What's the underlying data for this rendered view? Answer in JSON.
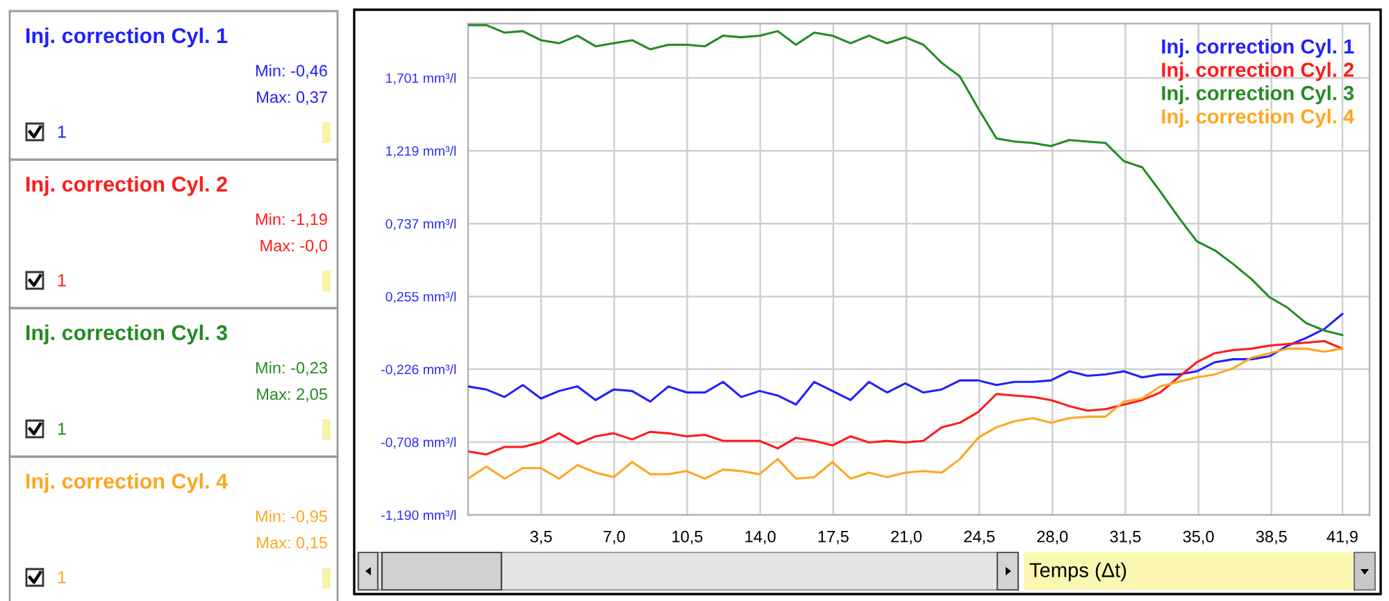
{
  "chart_data": {
    "type": "line",
    "x": [
      0,
      0.87,
      1.75,
      2.62,
      3.49,
      4.36,
      5.24,
      6.11,
      6.98,
      7.86,
      8.73,
      9.6,
      10.48,
      11.35,
      12.22,
      13.09,
      13.97,
      14.84,
      15.71,
      16.59,
      17.46,
      18.33,
      19.21,
      20.08,
      20.95,
      21.82,
      22.7,
      23.57,
      24.44,
      25.32,
      26.19,
      27.06,
      27.93,
      28.81,
      29.68,
      30.55,
      31.43,
      32.3,
      33.17,
      34.04,
      34.92,
      35.79,
      36.66,
      37.54,
      38.41,
      39.28,
      40.15,
      41.03,
      41.9
    ],
    "series": [
      {
        "name": "Inj. correction Cyl. 1",
        "color": "#2020ff",
        "values": [
          -0.34,
          -0.36,
          -0.41,
          -0.33,
          -0.42,
          -0.37,
          -0.34,
          -0.43,
          -0.36,
          -0.37,
          -0.44,
          -0.34,
          -0.38,
          -0.38,
          -0.31,
          -0.41,
          -0.37,
          -0.4,
          -0.46,
          -0.31,
          -0.37,
          -0.43,
          -0.31,
          -0.38,
          -0.32,
          -0.38,
          -0.36,
          -0.3,
          -0.3,
          -0.33,
          -0.31,
          -0.31,
          -0.3,
          -0.24,
          -0.27,
          -0.26,
          -0.24,
          -0.28,
          -0.26,
          -0.26,
          -0.24,
          -0.18,
          -0.16,
          -0.16,
          -0.14,
          -0.07,
          -0.02,
          0.04,
          0.14
        ]
      },
      {
        "name": "Inj. correction Cyl. 2",
        "color": "#ff1a1a",
        "values": [
          -0.77,
          -0.79,
          -0.74,
          -0.74,
          -0.71,
          -0.65,
          -0.72,
          -0.67,
          -0.65,
          -0.69,
          -0.64,
          -0.65,
          -0.67,
          -0.66,
          -0.7,
          -0.7,
          -0.7,
          -0.75,
          -0.68,
          -0.7,
          -0.73,
          -0.67,
          -0.71,
          -0.7,
          -0.71,
          -0.7,
          -0.61,
          -0.58,
          -0.51,
          -0.39,
          -0.4,
          -0.41,
          -0.43,
          -0.47,
          -0.5,
          -0.49,
          -0.46,
          -0.43,
          -0.38,
          -0.28,
          -0.18,
          -0.12,
          -0.1,
          -0.09,
          -0.07,
          -0.06,
          -0.05,
          -0.04,
          -0.09
        ]
      },
      {
        "name": "Inj. correction Cyl. 3",
        "color": "#228b22",
        "values": [
          2.05,
          2.05,
          2.0,
          2.01,
          1.95,
          1.93,
          1.98,
          1.91,
          1.93,
          1.95,
          1.89,
          1.92,
          1.92,
          1.91,
          1.98,
          1.97,
          1.98,
          2.01,
          1.92,
          2.0,
          1.98,
          1.93,
          1.98,
          1.93,
          1.97,
          1.92,
          1.8,
          1.71,
          1.5,
          1.3,
          1.28,
          1.27,
          1.25,
          1.29,
          1.28,
          1.27,
          1.15,
          1.11,
          0.95,
          0.78,
          0.62,
          0.56,
          0.47,
          0.37,
          0.25,
          0.18,
          0.08,
          0.03,
          0.0
        ]
      },
      {
        "name": "Inj. correction Cyl. 4",
        "color": "#ffa520",
        "values": [
          -0.95,
          -0.87,
          -0.95,
          -0.88,
          -0.88,
          -0.95,
          -0.86,
          -0.91,
          -0.94,
          -0.84,
          -0.92,
          -0.92,
          -0.9,
          -0.95,
          -0.89,
          -0.9,
          -0.92,
          -0.82,
          -0.95,
          -0.94,
          -0.84,
          -0.95,
          -0.91,
          -0.94,
          -0.91,
          -0.9,
          -0.91,
          -0.82,
          -0.68,
          -0.61,
          -0.57,
          -0.55,
          -0.58,
          -0.55,
          -0.54,
          -0.54,
          -0.44,
          -0.42,
          -0.34,
          -0.31,
          -0.28,
          -0.26,
          -0.22,
          -0.15,
          -0.12,
          -0.09,
          -0.09,
          -0.11,
          -0.09
        ]
      }
    ],
    "xlabel": "Temps (Δt)",
    "xlim": [
      0,
      43.2
    ],
    "xticks": [
      {
        "value": 3.5,
        "label": "3,5"
      },
      {
        "value": 7.0,
        "label": "7,0"
      },
      {
        "value": 10.5,
        "label": "10,5"
      },
      {
        "value": 14.0,
        "label": "14,0"
      },
      {
        "value": 17.5,
        "label": "17,5"
      },
      {
        "value": 21.0,
        "label": "21,0"
      },
      {
        "value": 24.5,
        "label": "24,5"
      },
      {
        "value": 28.0,
        "label": "28,0"
      },
      {
        "value": 31.5,
        "label": "31,5"
      },
      {
        "value": 35.0,
        "label": "35,0"
      },
      {
        "value": 38.5,
        "label": "38,5"
      },
      {
        "value": 41.9,
        "label": "41,9"
      }
    ],
    "ylim": [
      -1.19,
      2.06
    ],
    "yticks": [
      {
        "value": -1.19,
        "label": "-1,190 mm³/l"
      },
      {
        "value": -0.708,
        "label": "-0,708 mm³/l"
      },
      {
        "value": -0.226,
        "label": "-0,226 mm³/l"
      },
      {
        "value": 0.255,
        "label": "0,255 mm³/l"
      },
      {
        "value": 0.737,
        "label": "0,737 mm³/l"
      },
      {
        "value": 1.219,
        "label": "1,219 mm³/l"
      },
      {
        "value": 1.701,
        "label": "1,701 mm³/l"
      }
    ],
    "grid": true,
    "legend": "top right",
    "annotations": [
      "Inj. correction Cyl. 1",
      "Min: -0,46",
      "Max: 0,37",
      "1",
      "Inj. correction Cyl. 2",
      "Min: -1,19",
      "Max: -0,0",
      "1",
      "Inj. correction Cyl. 3",
      "Min: -0,23",
      "Max: 2,05",
      "1",
      "Inj. correction Cyl. 4",
      "Min: -0,95",
      "Max: 0,15",
      "1"
    ]
  }
}
